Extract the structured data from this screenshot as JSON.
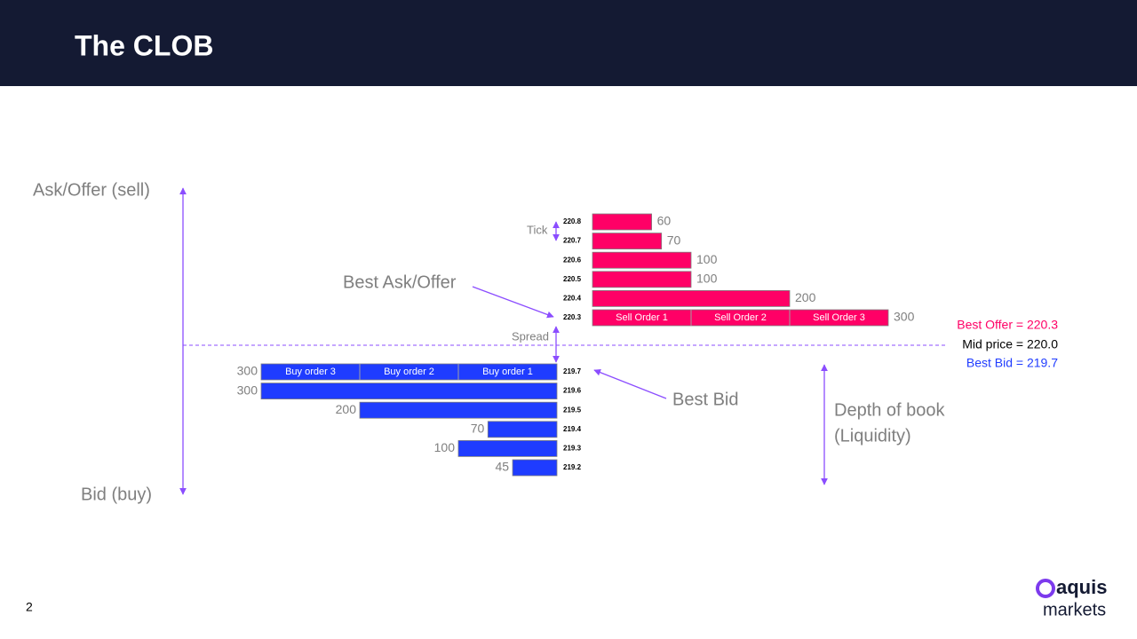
{
  "header": {
    "title": "The CLOB"
  },
  "chart_data": {
    "type": "order-book",
    "axis_labels": {
      "top": "Ask/Offer (sell)",
      "bottom": "Bid (buy)"
    },
    "ask_color": "#ff0066",
    "bid_color": "#1f3cff",
    "asks": [
      {
        "price": 220.8,
        "quantity": 60
      },
      {
        "price": 220.7,
        "quantity": 70
      },
      {
        "price": 220.6,
        "quantity": 100
      },
      {
        "price": 220.5,
        "quantity": 100
      },
      {
        "price": 220.4,
        "quantity": 200
      },
      {
        "price": 220.3,
        "quantity": 300,
        "orders": [
          "Sell Order 1",
          "Sell Order 2",
          "Sell Order 3"
        ]
      }
    ],
    "bids": [
      {
        "price": 219.7,
        "quantity": 300,
        "orders": [
          "Buy order 3",
          "Buy order 2",
          "Buy order 1"
        ]
      },
      {
        "price": 219.6,
        "quantity": 300
      },
      {
        "price": 219.5,
        "quantity": 200
      },
      {
        "price": 219.4,
        "quantity": 70
      },
      {
        "price": 219.3,
        "quantity": 100
      },
      {
        "price": 219.2,
        "quantity": 45
      }
    ],
    "annotations": {
      "tick": "Tick",
      "best_ask": "Best Ask/Offer",
      "spread": "Spread",
      "best_bid": "Best Bid",
      "depth": [
        "Depth of book",
        "(Liquidity)"
      ]
    },
    "legend": {
      "best_offer": "Best Offer = 220.3",
      "mid": "Mid price = 220.0",
      "best_bid": "Best Bid = 219.7"
    }
  },
  "footer": {
    "page": "2",
    "logo": [
      "aquis",
      "markets"
    ]
  }
}
